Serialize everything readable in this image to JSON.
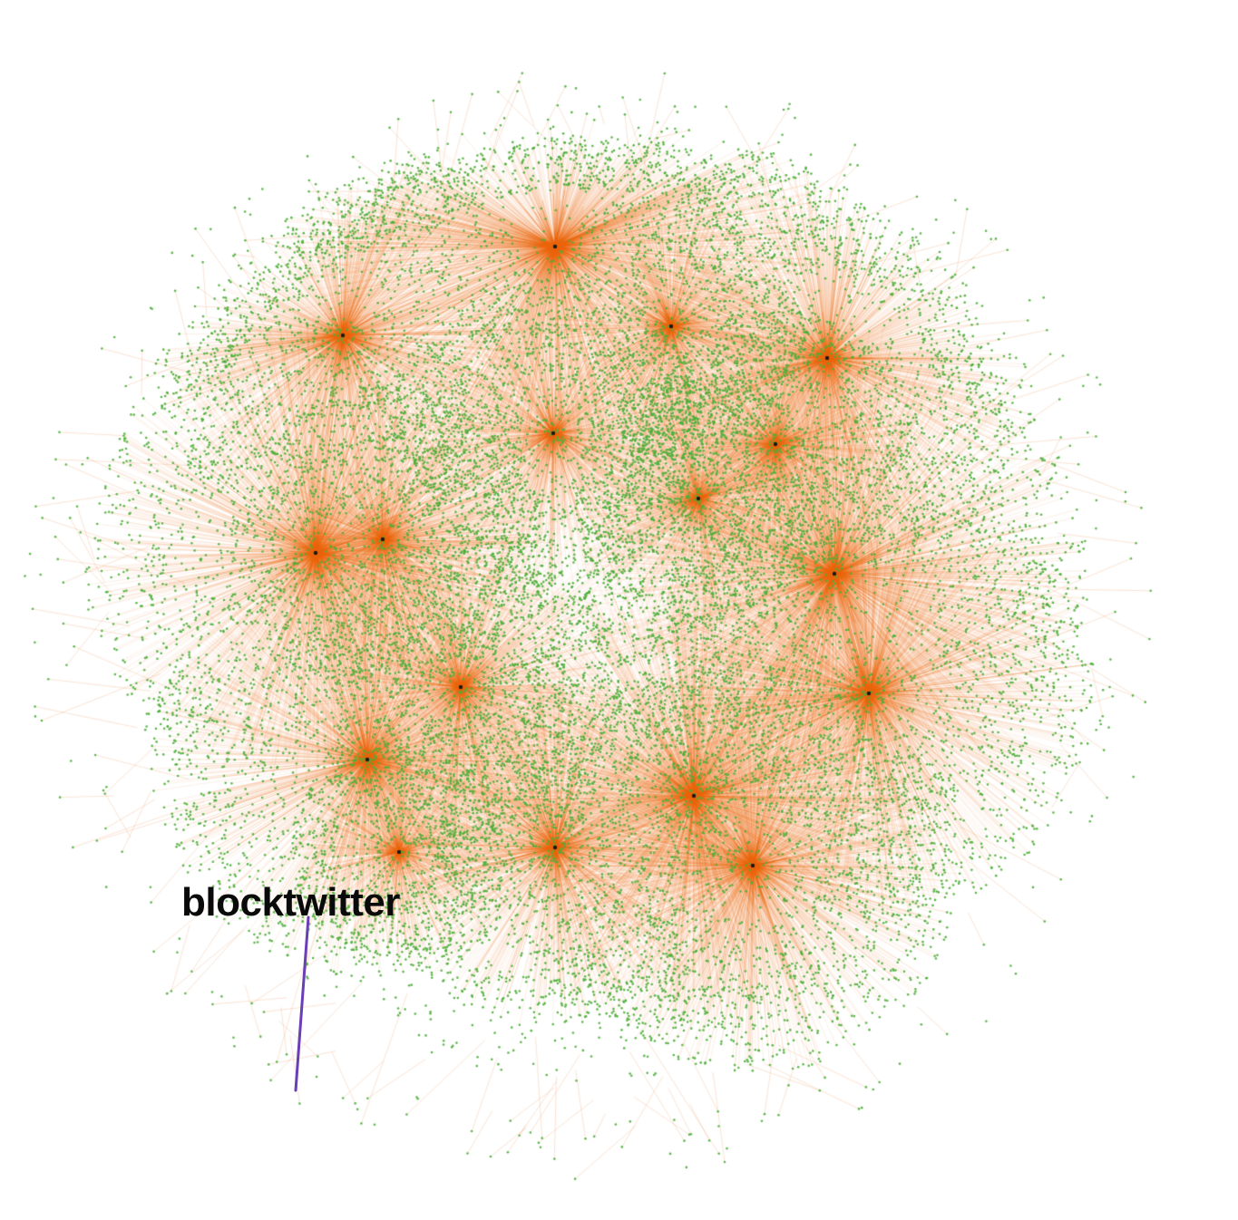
{
  "graph": {
    "colors": {
      "background": "#ffffff",
      "node": "#4caf3a",
      "edge": "#e8620a",
      "hub": "#1a1a1a",
      "highlight_edge": "#6a3fb5",
      "label": "#0a0a0a"
    },
    "annotation": {
      "label": "blocktwitter",
      "pointer_color": "#6a3fb5"
    }
  }
}
